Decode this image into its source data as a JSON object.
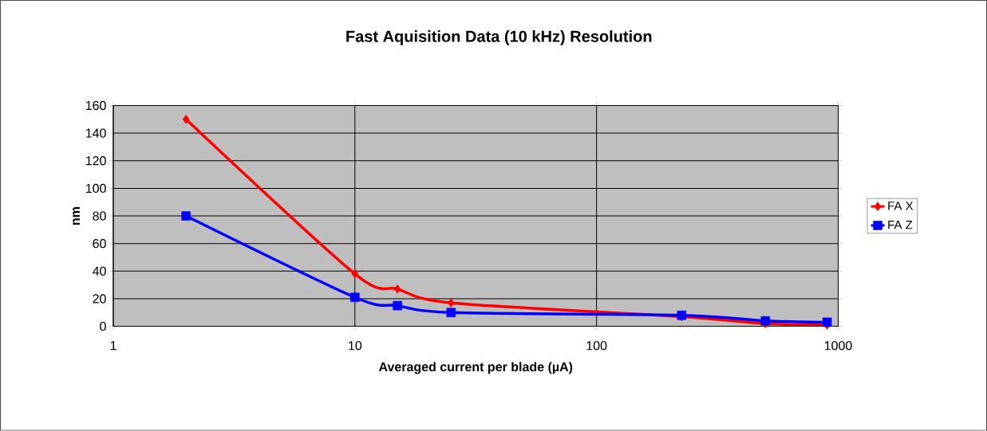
{
  "chart_data": {
    "type": "line",
    "title": "Fast Aquisition Data (10 kHz) Resolution",
    "xlabel": "Averaged current per blade (µA)",
    "ylabel": "nm",
    "x": [
      2,
      10,
      15,
      25,
      225,
      500,
      900
    ],
    "series": [
      {
        "name": "FA X",
        "color": "#ff0000",
        "marker": "diamond",
        "values": [
          150,
          38,
          27,
          17,
          7,
          2,
          1
        ]
      },
      {
        "name": "FA Z",
        "color": "#0000ff",
        "marker": "square",
        "values": [
          80,
          21,
          15,
          10,
          8,
          4,
          3
        ]
      }
    ],
    "log": "x",
    "xlim": [
      1,
      1000
    ],
    "xticks": [
      1,
      10,
      100,
      1000
    ],
    "ylim": [
      0,
      160
    ],
    "yticks": [
      0,
      20,
      40,
      60,
      80,
      100,
      120,
      140,
      160
    ],
    "grid": true,
    "legend": "right"
  }
}
